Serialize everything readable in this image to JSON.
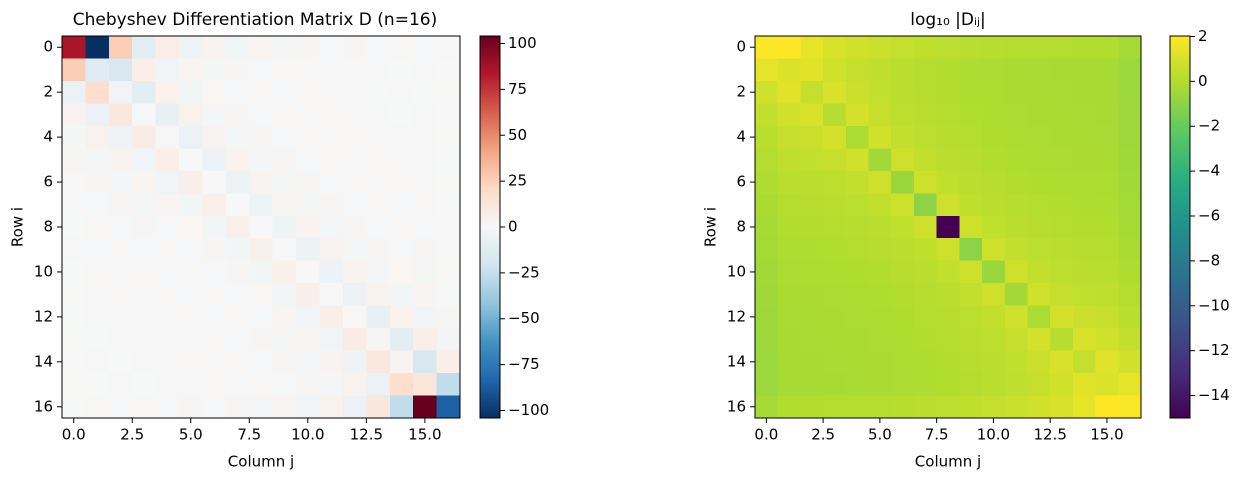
{
  "chart_data": [
    {
      "type": "heatmap",
      "title": "Chebyshev Differentiation Matrix D (n=16)",
      "xlabel": "Column j",
      "ylabel": "Row i",
      "colormap": "RdBu_r",
      "clim": [
        -104.09,
        104.09
      ],
      "cticks": [
        {
          "value": -100,
          "label": "−100"
        },
        {
          "value": -75,
          "label": "−75"
        },
        {
          "value": -50,
          "label": "−50"
        },
        {
          "value": -25,
          "label": "−25"
        },
        0,
        25,
        50,
        75,
        100
      ],
      "xlim": [
        -0.5,
        16.5
      ],
      "ylim": [
        -0.5,
        16.5
      ],
      "y_inverted": true,
      "xticks": [
        {
          "value": 0,
          "label": "0.0"
        },
        2.5,
        {
          "value": 5,
          "label": "5.0"
        },
        7.5,
        {
          "value": 10,
          "label": "10.0"
        },
        12.5,
        {
          "value": 15,
          "label": "15.0"
        }
      ],
      "yticks": [
        0,
        2,
        4,
        6,
        8,
        10,
        12,
        14,
        16
      ],
      "values": [
        [
          85.5,
          -104.09,
          26.27,
          -11.87,
          6.83,
          -4.5,
          3.24,
          -2.48,
          2.0,
          -1.67,
          1.45,
          -1.29,
          1.17,
          -1.09,
          1.04,
          -1.01,
          0.5
        ],
        [
          26.02,
          -12.88,
          -17.57,
          6.7,
          -3.65,
          2.35,
          -1.67,
          1.27,
          -1.02,
          0.85,
          -0.73,
          0.65,
          -0.59,
          0.55,
          -0.53,
          0.51,
          -0.25
        ],
        [
          -6.57,
          17.57,
          -3.15,
          -10.82,
          4.61,
          -2.72,
          1.85,
          -1.37,
          1.08,
          -0.89,
          0.77,
          -0.68,
          0.61,
          -0.57,
          0.54,
          -0.53,
          0.26
        ],
        [
          2.97,
          -6.7,
          10.82,
          -1.35,
          -8.04,
          3.62,
          -2.23,
          1.57,
          -1.2,
          0.97,
          -0.82,
          0.72,
          -0.65,
          0.6,
          -0.57,
          0.55,
          -0.27
        ],
        [
          -1.71,
          3.65,
          -4.61,
          8.04,
          -0.71,
          -6.6,
          3.08,
          -1.95,
          1.41,
          -1.11,
          0.92,
          -0.79,
          0.71,
          -0.65,
          0.61,
          -0.59,
          0.29
        ],
        [
          1.13,
          -2.35,
          2.72,
          -3.62,
          6.6,
          -0.4,
          -5.78,
          2.77,
          -1.8,
          1.33,
          -1.07,
          0.9,
          -0.79,
          0.72,
          -0.68,
          0.65,
          -0.32
        ],
        [
          -0.81,
          1.67,
          -1.85,
          2.23,
          -3.08,
          5.78,
          -0.22,
          -5.33,
          2.61,
          -1.73,
          1.31,
          -1.07,
          0.92,
          -0.82,
          0.77,
          -0.73,
          0.36
        ],
        [
          0.62,
          -1.27,
          1.37,
          -1.57,
          1.95,
          -2.77,
          5.33,
          -0.1,
          -5.13,
          2.56,
          -1.73,
          1.33,
          -1.11,
          0.97,
          -0.89,
          0.85,
          -0.42
        ],
        [
          -0.5,
          1.02,
          -1.08,
          1.2,
          -1.41,
          1.8,
          -2.61,
          5.13,
          0,
          -5.13,
          2.61,
          -1.8,
          1.41,
          -1.2,
          1.08,
          -1.02,
          0.5
        ],
        [
          0.42,
          -0.85,
          0.89,
          -0.97,
          1.11,
          -1.33,
          1.73,
          -2.56,
          5.13,
          0.1,
          -5.33,
          2.77,
          -1.95,
          1.57,
          -1.37,
          1.27,
          -0.62
        ],
        [
          -0.36,
          0.73,
          -0.77,
          0.82,
          -0.92,
          1.07,
          -1.31,
          1.73,
          -2.61,
          5.33,
          0.22,
          -5.78,
          3.08,
          -2.23,
          1.85,
          -1.67,
          0.81
        ],
        [
          0.32,
          -0.65,
          0.68,
          -0.72,
          0.79,
          -0.9,
          1.07,
          -1.33,
          1.8,
          -2.77,
          5.78,
          0.4,
          -6.6,
          3.62,
          -2.72,
          2.35,
          -1.13
        ],
        [
          -0.29,
          0.59,
          -0.61,
          0.65,
          -0.71,
          0.79,
          -0.92,
          1.11,
          -1.41,
          1.95,
          -3.08,
          6.6,
          0.71,
          -8.04,
          4.61,
          -3.65,
          1.71
        ],
        [
          0.27,
          -0.55,
          0.57,
          -0.6,
          0.65,
          -0.72,
          0.82,
          -0.97,
          1.2,
          -1.57,
          2.23,
          -3.62,
          8.04,
          1.35,
          -10.82,
          6.7,
          -2.97
        ],
        [
          -0.26,
          0.53,
          -0.54,
          0.57,
          -0.61,
          0.68,
          -0.77,
          0.89,
          -1.08,
          1.37,
          -1.85,
          2.72,
          -4.61,
          10.82,
          3.15,
          -17.57,
          6.57
        ],
        [
          0.25,
          -0.51,
          0.53,
          -0.55,
          0.59,
          -0.65,
          0.73,
          -0.85,
          1.02,
          -1.27,
          1.67,
          -2.35,
          3.65,
          -6.7,
          17.57,
          12.88,
          -26.02
        ],
        [
          -0.5,
          1.01,
          -1.04,
          1.09,
          -1.17,
          1.29,
          -1.45,
          1.67,
          -2.0,
          2.48,
          -3.24,
          4.5,
          -6.83,
          11.87,
          -26.27,
          104.09,
          -85.5
        ]
      ]
    },
    {
      "type": "heatmap",
      "title": "log₁₀ |Dᵢⱼ|",
      "xlabel": "Column j",
      "ylabel": "Row i",
      "colormap": "viridis",
      "clim": [
        -15,
        2.02
      ],
      "cticks": [
        2,
        0,
        {
          "value": -2,
          "label": "−2"
        },
        {
          "value": -4,
          "label": "−4"
        },
        {
          "value": -6,
          "label": "−6"
        },
        {
          "value": -8,
          "label": "−8"
        },
        {
          "value": -10,
          "label": "−10"
        },
        {
          "value": -12,
          "label": "−12"
        },
        {
          "value": -14,
          "label": "−14"
        }
      ],
      "xlim": [
        -0.5,
        16.5
      ],
      "ylim": [
        -0.5,
        16.5
      ],
      "y_inverted": true,
      "xticks": [
        {
          "value": 0,
          "label": "0.0"
        },
        2.5,
        {
          "value": 5,
          "label": "5.0"
        },
        7.5,
        {
          "value": 10,
          "label": "10.0"
        },
        12.5,
        {
          "value": 15,
          "label": "15.0"
        }
      ],
      "yticks": [
        0,
        2,
        4,
        6,
        8,
        10,
        12,
        14,
        16
      ],
      "values": [
        [
          1.93,
          2.02,
          1.42,
          1.07,
          0.83,
          0.65,
          0.51,
          0.4,
          0.3,
          0.22,
          0.16,
          0.11,
          0.07,
          0.04,
          0.02,
          0.0,
          -0.3
        ],
        [
          1.42,
          1.11,
          1.24,
          0.83,
          0.56,
          0.37,
          0.22,
          0.1,
          0.01,
          -0.07,
          -0.13,
          -0.19,
          -0.23,
          -0.26,
          -0.28,
          -0.29,
          -0.6
        ],
        [
          0.82,
          1.24,
          0.5,
          1.03,
          0.66,
          0.43,
          0.27,
          0.14,
          0.03,
          -0.05,
          -0.12,
          -0.17,
          -0.21,
          -0.24,
          -0.27,
          -0.28,
          -0.59
        ],
        [
          0.47,
          0.83,
          1.03,
          0.13,
          0.91,
          0.56,
          0.35,
          0.2,
          0.08,
          -0.01,
          -0.08,
          -0.14,
          -0.19,
          -0.22,
          -0.24,
          -0.26,
          -0.56
        ],
        [
          0.23,
          0.56,
          0.66,
          0.91,
          -0.15,
          0.82,
          0.49,
          0.29,
          0.15,
          0.04,
          -0.04,
          -0.1,
          -0.15,
          -0.19,
          -0.21,
          -0.23,
          -0.53
        ],
        [
          0.05,
          0.37,
          0.43,
          0.56,
          0.82,
          -0.4,
          0.76,
          0.44,
          0.26,
          0.12,
          0.03,
          -0.05,
          -0.1,
          -0.14,
          -0.17,
          -0.19,
          -0.49
        ],
        [
          -0.09,
          0.22,
          0.27,
          0.35,
          0.49,
          0.76,
          -0.65,
          0.73,
          0.42,
          0.24,
          0.12,
          0.03,
          -0.04,
          -0.08,
          -0.12,
          -0.13,
          -0.44
        ],
        [
          -0.21,
          0.1,
          0.14,
          0.2,
          0.29,
          0.44,
          0.73,
          -0.99,
          0.71,
          0.41,
          0.24,
          0.12,
          0.04,
          -0.01,
          -0.05,
          -0.07,
          -0.38
        ],
        [
          -0.3,
          0.01,
          0.03,
          0.08,
          0.15,
          0.26,
          0.42,
          0.71,
          -15,
          0.71,
          0.42,
          0.26,
          0.15,
          0.08,
          0.03,
          0.01,
          -0.3
        ],
        [
          -0.38,
          -0.07,
          -0.05,
          -0.01,
          0.04,
          0.12,
          0.24,
          0.41,
          0.71,
          -0.99,
          0.73,
          0.44,
          0.29,
          0.2,
          0.14,
          0.1,
          -0.21
        ],
        [
          -0.44,
          -0.13,
          -0.12,
          -0.08,
          -0.04,
          0.03,
          0.12,
          0.24,
          0.42,
          0.73,
          -0.65,
          0.76,
          0.49,
          0.35,
          0.27,
          0.22,
          -0.09
        ],
        [
          -0.49,
          -0.19,
          -0.17,
          -0.14,
          -0.1,
          -0.05,
          0.03,
          0.12,
          0.26,
          0.44,
          0.76,
          -0.4,
          0.82,
          0.56,
          0.43,
          0.37,
          0.05
        ],
        [
          -0.53,
          -0.23,
          -0.21,
          -0.19,
          -0.15,
          -0.1,
          -0.04,
          0.04,
          0.15,
          0.29,
          0.49,
          0.82,
          -0.15,
          0.91,
          0.66,
          0.56,
          0.23
        ],
        [
          -0.56,
          -0.26,
          -0.24,
          -0.22,
          -0.19,
          -0.14,
          -0.08,
          -0.01,
          0.08,
          0.2,
          0.35,
          0.56,
          0.91,
          0.13,
          1.03,
          0.83,
          0.47
        ],
        [
          -0.59,
          -0.28,
          -0.27,
          -0.24,
          -0.21,
          -0.17,
          -0.12,
          -0.05,
          0.03,
          0.14,
          0.27,
          0.43,
          0.66,
          1.03,
          0.5,
          1.24,
          0.82
        ],
        [
          -0.6,
          -0.29,
          -0.28,
          -0.26,
          -0.23,
          -0.19,
          -0.13,
          -0.07,
          0.01,
          0.1,
          0.22,
          0.37,
          0.56,
          0.83,
          1.24,
          1.11,
          1.42
        ],
        [
          -0.3,
          0.0,
          0.02,
          0.04,
          0.07,
          0.11,
          0.16,
          0.22,
          0.3,
          0.4,
          0.51,
          0.65,
          0.83,
          1.07,
          1.42,
          2.02,
          1.93
        ]
      ]
    }
  ]
}
